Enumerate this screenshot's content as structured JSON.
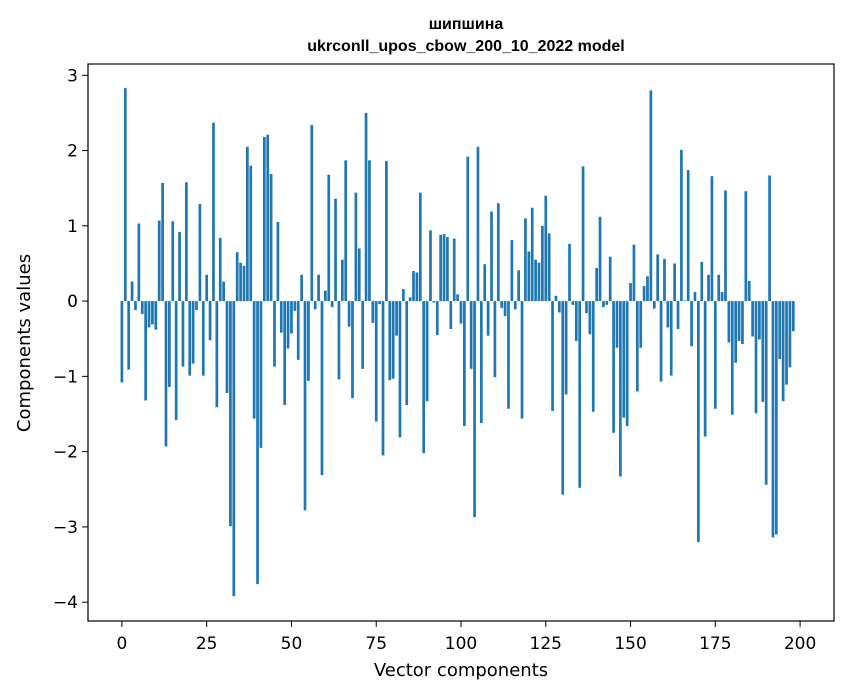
{
  "chart_data": {
    "type": "bar",
    "title": "шипшина",
    "subtitle": "ukrconll_upos_cbow_200_10_2022 model",
    "xlabel": "Vector components",
    "ylabel": "Components values",
    "xlim": [
      -10,
      210
    ],
    "ylim": [
      -4.25,
      3.15
    ],
    "x_ticks": [
      0,
      25,
      50,
      75,
      100,
      125,
      150,
      175,
      200
    ],
    "y_ticks": [
      -4,
      -3,
      -2,
      -1,
      0,
      1,
      2,
      3
    ],
    "grid": false,
    "bar_color": "#1f77b4",
    "values": [
      -1.08,
      2.83,
      -0.91,
      0.26,
      -0.12,
      1.03,
      -0.17,
      -1.32,
      -0.35,
      -0.31,
      -0.38,
      1.07,
      1.57,
      -1.93,
      -1.14,
      1.06,
      -1.58,
      0.92,
      -0.87,
      1.58,
      -0.99,
      -0.83,
      -0.12,
      1.29,
      -0.99,
      0.35,
      -0.52,
      2.37,
      -1.41,
      0.84,
      0.26,
      -1.22,
      -2.99,
      -3.92,
      0.65,
      0.51,
      0.47,
      2.05,
      1.8,
      -1.56,
      -3.76,
      -1.95,
      2.18,
      2.21,
      1.69,
      -0.87,
      1.05,
      -0.42,
      -1.38,
      -0.63,
      -0.43,
      -0.13,
      -0.78,
      0.35,
      -2.78,
      -1.06,
      2.34,
      -0.11,
      0.35,
      -2.31,
      0.14,
      1.68,
      -0.08,
      1.36,
      -1.04,
      0.55,
      1.87,
      -0.34,
      -1.29,
      1.44,
      0.7,
      -0.9,
      2.5,
      1.87,
      -0.29,
      -1.6,
      -0.04,
      -2.05,
      1.86,
      -1.05,
      -1.03,
      -0.46,
      -1.81,
      0.16,
      -1.38,
      0.05,
      0.4,
      0.38,
      1.44,
      -2.02,
      -1.33,
      0.94,
      -0.02,
      -0.45,
      0.88,
      0.89,
      0.85,
      -0.37,
      0.83,
      0.09,
      -0.3,
      -1.66,
      1.92,
      -0.9,
      -2.87,
      2.05,
      -1.62,
      0.49,
      -0.46,
      1.19,
      -1.01,
      1.3,
      -0.09,
      -0.2,
      -1.43,
      0.81,
      -0.11,
      0.41,
      -1.56,
      1.1,
      0.66,
      1.24,
      0.55,
      0.51,
      1.0,
      1.4,
      0.9,
      -1.46,
      0.07,
      -0.15,
      -2.57,
      -1.24,
      0.76,
      -0.05,
      -0.53,
      -2.48,
      1.79,
      -0.16,
      -0.44,
      -1.47,
      0.44,
      1.12,
      -0.08,
      -0.05,
      0.59,
      -1.75,
      -0.62,
      -2.33,
      -1.55,
      -1.66,
      0.24,
      0.75,
      -1.2,
      -0.62,
      0.2,
      0.33,
      2.8,
      -0.1,
      0.62,
      -1.07,
      0.56,
      -0.35,
      -0.99,
      0.5,
      -0.37,
      2.01,
      0.01,
      1.74,
      -0.6,
      0.12,
      -3.2,
      0.52,
      -1.8,
      0.35,
      1.66,
      -1.43,
      0.35,
      0.12,
      1.47,
      -0.55,
      -1.51,
      -0.82,
      -0.53,
      -0.57,
      1.46,
      0.27,
      -0.47,
      -1.49,
      -0.51,
      -1.34,
      -2.44,
      1.67,
      -3.14,
      -3.1,
      -0.77,
      -1.33,
      -1.11,
      -0.88,
      -0.4,
      0.0
    ]
  }
}
